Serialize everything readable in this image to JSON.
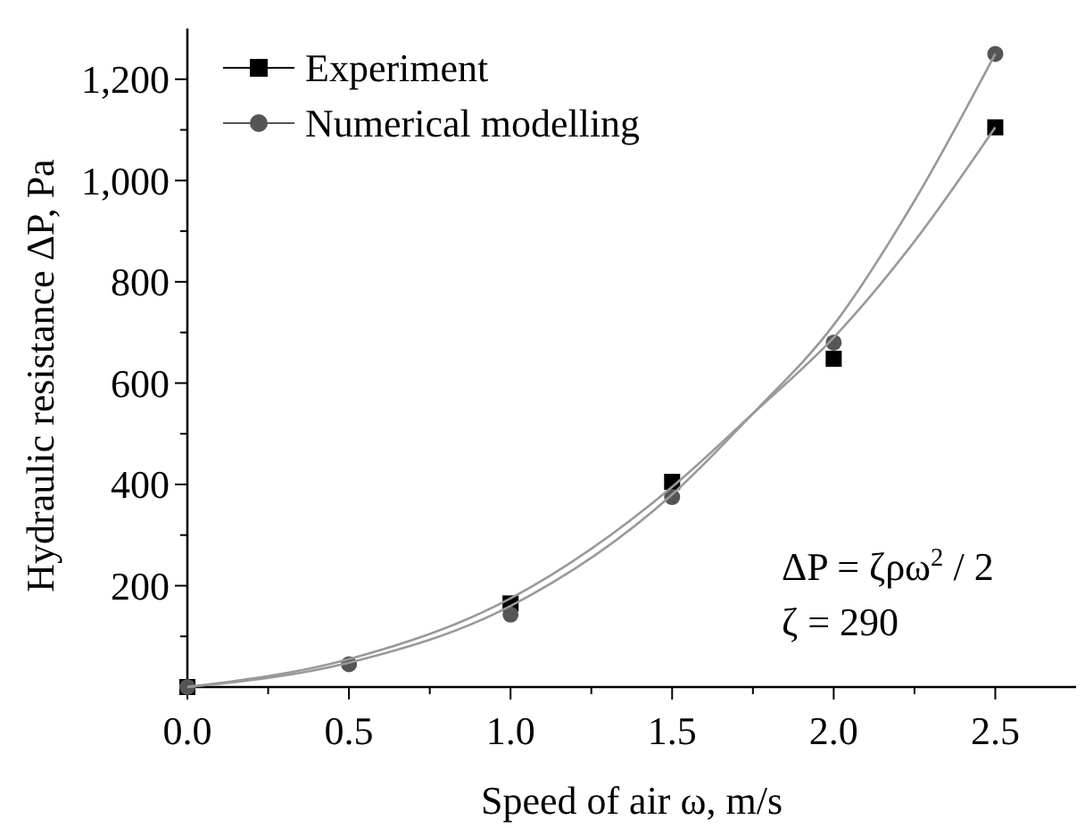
{
  "chart_data": {
    "type": "scatter",
    "xlabel": "Speed of air ω, m/s",
    "ylabel": "Hydraulic resistance ΔP, Pa",
    "xlim": [
      0,
      2.75
    ],
    "ylim": [
      0,
      1300
    ],
    "xticks": [
      {
        "value": 0,
        "label": "0.0"
      },
      {
        "value": 0.25,
        "label": null
      },
      {
        "value": 0.5,
        "label": "0.5"
      },
      {
        "value": 0.75,
        "label": null
      },
      {
        "value": 1,
        "label": "1.0"
      },
      {
        "value": 1.25,
        "label": null
      },
      {
        "value": 1.5,
        "label": "1.5"
      },
      {
        "value": 1.75,
        "label": null
      },
      {
        "value": 2,
        "label": "2.0"
      },
      {
        "value": 2.25,
        "label": null
      },
      {
        "value": 2.5,
        "label": "2.5"
      }
    ],
    "yticks": [
      {
        "value": 100,
        "label": null
      },
      200,
      {
        "value": 300,
        "label": null
      },
      400,
      {
        "value": 500,
        "label": null
      },
      600,
      {
        "value": 700,
        "label": null
      },
      800,
      {
        "value": 900,
        "label": null
      },
      {
        "value": 1000,
        "label": "1,000"
      },
      {
        "value": 1100,
        "label": null
      },
      {
        "value": 1200,
        "label": "1,200"
      }
    ],
    "x": [
      0,
      0.5,
      1,
      1.5,
      2,
      2.5
    ],
    "series": [
      {
        "name": "Experiment",
        "color": "#000000",
        "marker": "square",
        "values": [
          0,
          null,
          165,
          405,
          648,
          1105
        ]
      },
      {
        "name": "Numerical modelling",
        "color": "#555555",
        "marker": "circle",
        "values": [
          0,
          45,
          143,
          375,
          680,
          1250
        ]
      },
      {
        "type": "line",
        "color": "#999999",
        "marker": "none",
        "x": [
          0,
          0.5,
          1,
          1.5,
          1.75,
          2,
          2.25,
          2.5
        ],
        "values": [
          0,
          55,
          175,
          395,
          540,
          690,
          880,
          1105
        ]
      },
      {
        "type": "line",
        "color": "#999999",
        "marker": "none",
        "x": [
          0,
          0.5,
          1,
          1.5,
          1.75,
          2,
          2.25,
          2.5
        ],
        "values": [
          0,
          48,
          160,
          380,
          540,
          715,
          960,
          1250
        ]
      }
    ],
    "legend": "top left",
    "grid": false,
    "annotations": [
      "ΔP = ζρω$^{2}$ / 2",
      "ζ = 290"
    ]
  }
}
